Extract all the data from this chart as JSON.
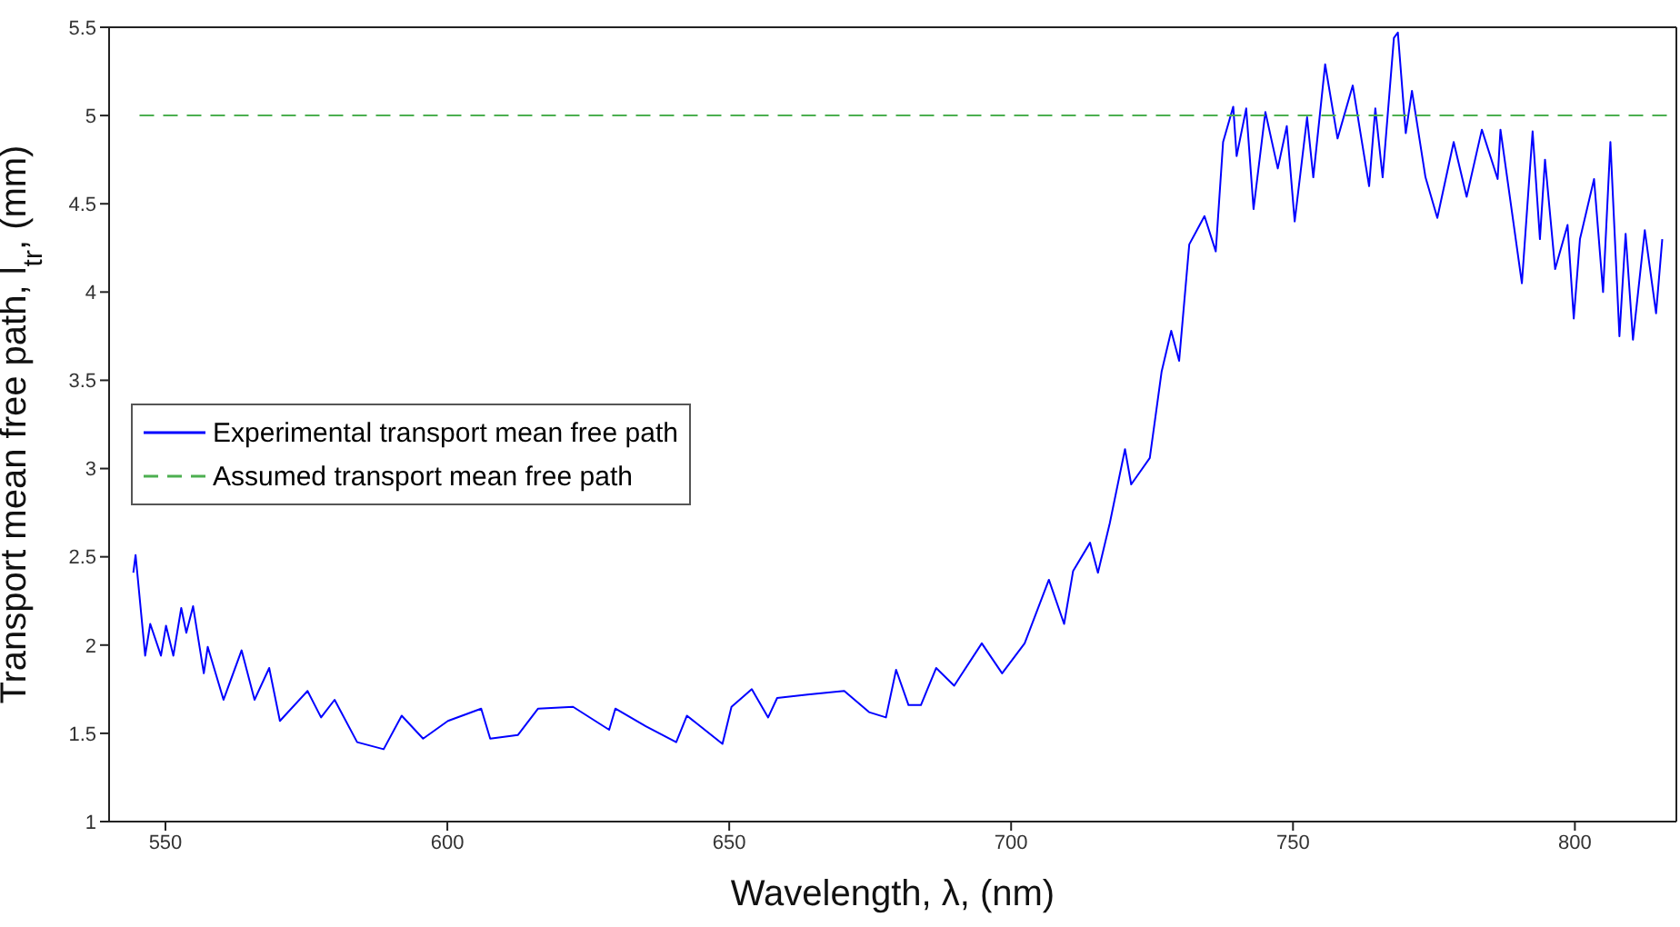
{
  "chart_data": {
    "type": "line",
    "xlabel": "Wavelength, λ, (nm)",
    "ylabel": "Transport mean free path, l$_{tr}$, (mm)",
    "xlim": [
      540,
      818
    ],
    "xticks": [
      550,
      600,
      650,
      700,
      750,
      800
    ],
    "ylim": [
      1,
      5.5
    ],
    "yticks": [
      1,
      1.5,
      2,
      2.5,
      3,
      3.5,
      4,
      4.5,
      5,
      5.5
    ],
    "grid": false,
    "legend": "left",
    "marker": "none",
    "series": [
      {
        "name": "Experimental transport mean free path",
        "color": "#0000ff",
        "line_style": "solid",
        "x": [
          544.3,
          544.7,
          546.4,
          547.3,
          549.2,
          550.1,
          551.4,
          552.8,
          553.7,
          554.9,
          556.8,
          557.5,
          560.3,
          563.5,
          565.8,
          568.4,
          570.3,
          575.2,
          577.6,
          580.0,
          584.0,
          588.7,
          591.9,
          595.7,
          600.1,
          606.0,
          607.6,
          612.5,
          616.1,
          622.3,
          628.7,
          629.8,
          635.2,
          640.6,
          642.5,
          648.8,
          650.4,
          654.0,
          656.9,
          658.5,
          663.9,
          670.4,
          674.8,
          677.8,
          679.6,
          681.8,
          684.0,
          686.7,
          689.9,
          694.8,
          698.4,
          702.4,
          706.7,
          709.4,
          711.0,
          714.0,
          715.4,
          717.5,
          720.2,
          721.3,
          724.6,
          726.7,
          728.4,
          729.8,
          731.6,
          734.3,
          736.3,
          737.6,
          739.4,
          740.0,
          741.7,
          743.0,
          745.1,
          747.3,
          748.9,
          750.3,
          752.5,
          753.6,
          755.7,
          757.9,
          760.6,
          763.5,
          764.6,
          765.9,
          767.9,
          768.6,
          770.0,
          771.1,
          773.5,
          775.6,
          778.5,
          780.8,
          783.5,
          786.3,
          786.8,
          790.6,
          792.5,
          793.8,
          794.7,
          796.5,
          798.7,
          799.8,
          800.9,
          803.4,
          805.0,
          806.3,
          807.9,
          809.0,
          810.3,
          812.4,
          814.4,
          815.5
        ],
        "values": [
          2.41,
          2.51,
          1.94,
          2.12,
          1.94,
          2.11,
          1.94,
          2.21,
          2.07,
          2.22,
          1.84,
          1.99,
          1.69,
          1.97,
          1.69,
          1.87,
          1.57,
          1.74,
          1.59,
          1.69,
          1.45,
          1.41,
          1.6,
          1.47,
          1.57,
          1.64,
          1.47,
          1.49,
          1.64,
          1.65,
          1.52,
          1.64,
          1.54,
          1.45,
          1.6,
          1.44,
          1.65,
          1.75,
          1.59,
          1.7,
          1.72,
          1.74,
          1.62,
          1.59,
          1.86,
          1.66,
          1.66,
          1.87,
          1.77,
          2.01,
          1.84,
          2.01,
          2.37,
          2.12,
          2.42,
          2.58,
          2.41,
          2.69,
          3.11,
          2.91,
          3.06,
          3.55,
          3.78,
          3.61,
          4.27,
          4.43,
          4.23,
          4.85,
          5.05,
          4.77,
          5.04,
          4.47,
          5.02,
          4.7,
          4.94,
          4.4,
          4.99,
          4.65,
          5.29,
          4.87,
          5.17,
          4.6,
          5.04,
          4.65,
          5.44,
          5.47,
          4.9,
          5.14,
          4.65,
          4.42,
          4.85,
          4.54,
          4.92,
          4.64,
          4.92,
          4.05,
          4.91,
          4.3,
          4.75,
          4.13,
          4.38,
          3.85,
          4.3,
          4.64,
          4.0,
          4.85,
          3.75,
          4.33,
          3.73,
          4.35,
          3.88,
          4.3
        ]
      },
      {
        "name": "Assumed transport mean free path",
        "color": "#4caf50",
        "line_style": "dashed",
        "x": [
          545.4,
          818
        ],
        "values": [
          5,
          5
        ]
      }
    ]
  }
}
